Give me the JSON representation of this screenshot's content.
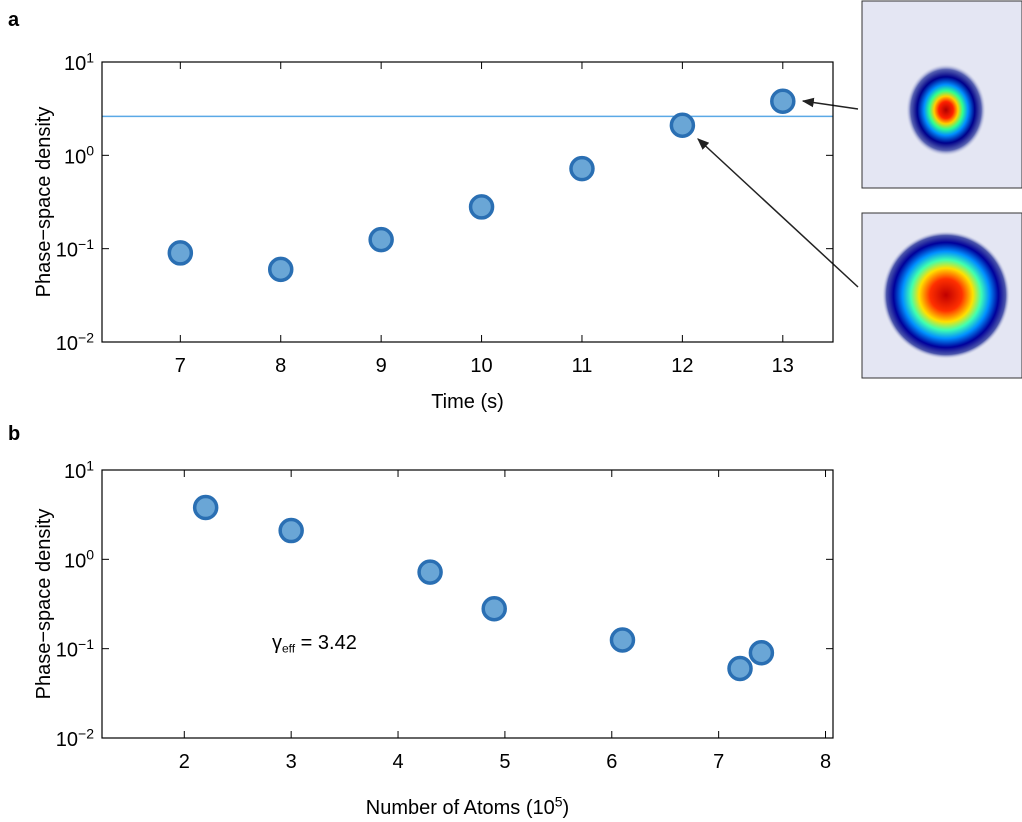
{
  "chart_data": [
    {
      "type": "scatter",
      "panel_label": "a",
      "xlabel": "Time (s)",
      "ylabel": "Phase−space density",
      "x": [
        7,
        8,
        9,
        10,
        11,
        12,
        13
      ],
      "values": [
        0.09,
        0.06,
        0.125,
        0.28,
        0.72,
        2.1,
        3.8
      ],
      "color": "#6aa6d6",
      "edge_color": "#2a6fb3",
      "xlim": [
        6.22,
        13.5
      ],
      "xticks": [
        7,
        8,
        9,
        10,
        11,
        12,
        13
      ],
      "ylim": [
        0.01,
        10
      ],
      "yscale": "log",
      "yticks": [
        {
          "value": 0.01,
          "label": "10^{−2}"
        },
        {
          "value": 0.1,
          "label": "10^{−1}"
        },
        {
          "value": 1,
          "label": "10^{0}"
        },
        {
          "value": 10,
          "label": "10^{1}"
        }
      ],
      "hline": {
        "value": 2.612,
        "color": "#5aa9e6"
      }
    },
    {
      "type": "scatter",
      "panel_label": "b",
      "xlabel": "Number of Atoms (10^{5})",
      "ylabel": "Phase−space density",
      "annotation": "γ_{eff} = 3.42",
      "x": [
        2.2,
        3.0,
        4.3,
        4.9,
        6.1,
        7.2,
        7.4
      ],
      "values": [
        3.8,
        2.1,
        0.72,
        0.28,
        0.125,
        0.06,
        0.09
      ],
      "color": "#6aa6d6",
      "edge_color": "#2a6fb3",
      "xlim": [
        1.23,
        8.07
      ],
      "xticks": [
        2,
        3,
        4,
        5,
        6,
        7,
        8
      ],
      "ylim": [
        0.01,
        10
      ],
      "yscale": "log",
      "yticks": [
        {
          "value": 0.01,
          "label": "10^{−2}"
        },
        {
          "value": 0.1,
          "label": "10^{−1}"
        },
        {
          "value": 1,
          "label": "10^{0}"
        },
        {
          "value": 10,
          "label": "10^{1}"
        }
      ]
    }
  ]
}
